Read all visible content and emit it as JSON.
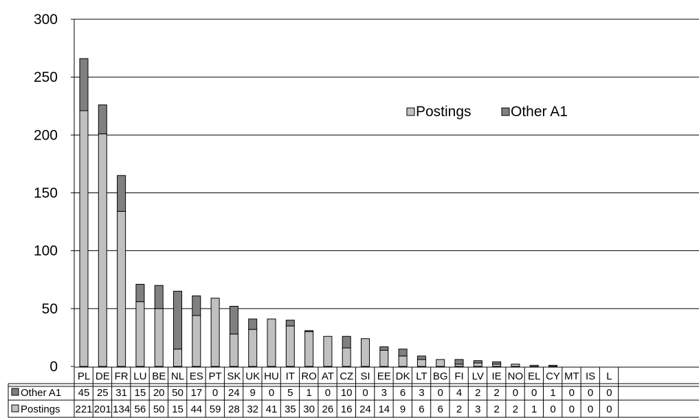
{
  "chart_data": {
    "type": "bar",
    "stacked": true,
    "categories": [
      "PL",
      "DE",
      "FR",
      "LU",
      "BE",
      "NL",
      "ES",
      "PT",
      "SK",
      "UK",
      "HU",
      "IT",
      "RO",
      "AT",
      "CZ",
      "SI",
      "EE",
      "DK",
      "LT",
      "BG",
      "FI",
      "LV",
      "IE",
      "NO",
      "EL",
      "CY",
      "MT",
      "IS",
      "L"
    ],
    "series": [
      {
        "name": "Postings",
        "color": "#c0c0c0",
        "values": [
          221,
          201,
          134,
          56,
          50,
          15,
          44,
          59,
          28,
          32,
          41,
          35,
          30,
          26,
          16,
          24,
          14,
          9,
          6,
          6,
          2,
          3,
          2,
          2,
          1,
          0,
          0,
          0,
          0
        ]
      },
      {
        "name": "Other A1",
        "color": "#808080",
        "values": [
          45,
          25,
          31,
          15,
          20,
          50,
          17,
          0,
          24,
          9,
          0,
          5,
          1,
          0,
          10,
          0,
          3,
          6,
          3,
          0,
          4,
          2,
          2,
          0,
          0,
          1,
          0,
          0,
          0
        ]
      }
    ],
    "ylim": [
      0,
      300
    ],
    "yticks": [
      "0",
      "50",
      "100",
      "150",
      "200",
      "250",
      "300"
    ],
    "grid": true,
    "legend_position": "top-right",
    "data_table": true,
    "truncated_last_label": "0"
  }
}
